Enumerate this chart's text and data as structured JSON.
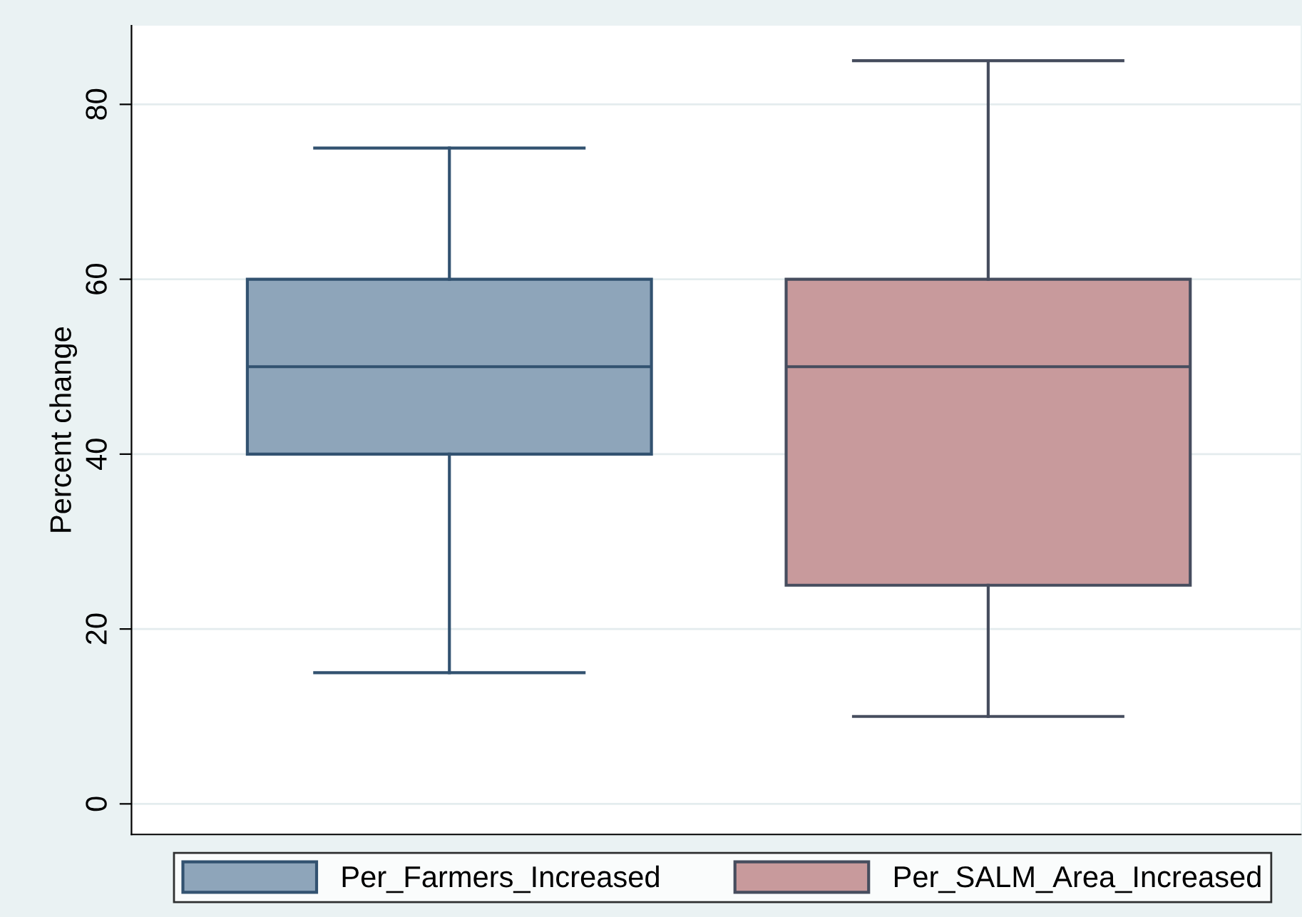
{
  "chart_data": {
    "type": "box",
    "ylabel": "Percent change",
    "categories": [
      null
    ],
    "series": [
      {
        "name": "Per_Farmers_Increased",
        "color": "#8ea5ba",
        "boxes": [
          {
            "low": 15,
            "q1": 40,
            "median": 50,
            "q3": 60,
            "high": 75
          }
        ]
      },
      {
        "name": "Per_SALM_Area_Increased",
        "color": "#c89a9c",
        "boxes": [
          {
            "low": 10,
            "q1": 25,
            "median": 50,
            "q3": 60,
            "high": 85
          }
        ]
      }
    ],
    "ylim": [
      -3.5,
      89
    ],
    "yticks": [
      0,
      20,
      40,
      60,
      80
    ],
    "grid": "y",
    "legend": "bottom"
  }
}
